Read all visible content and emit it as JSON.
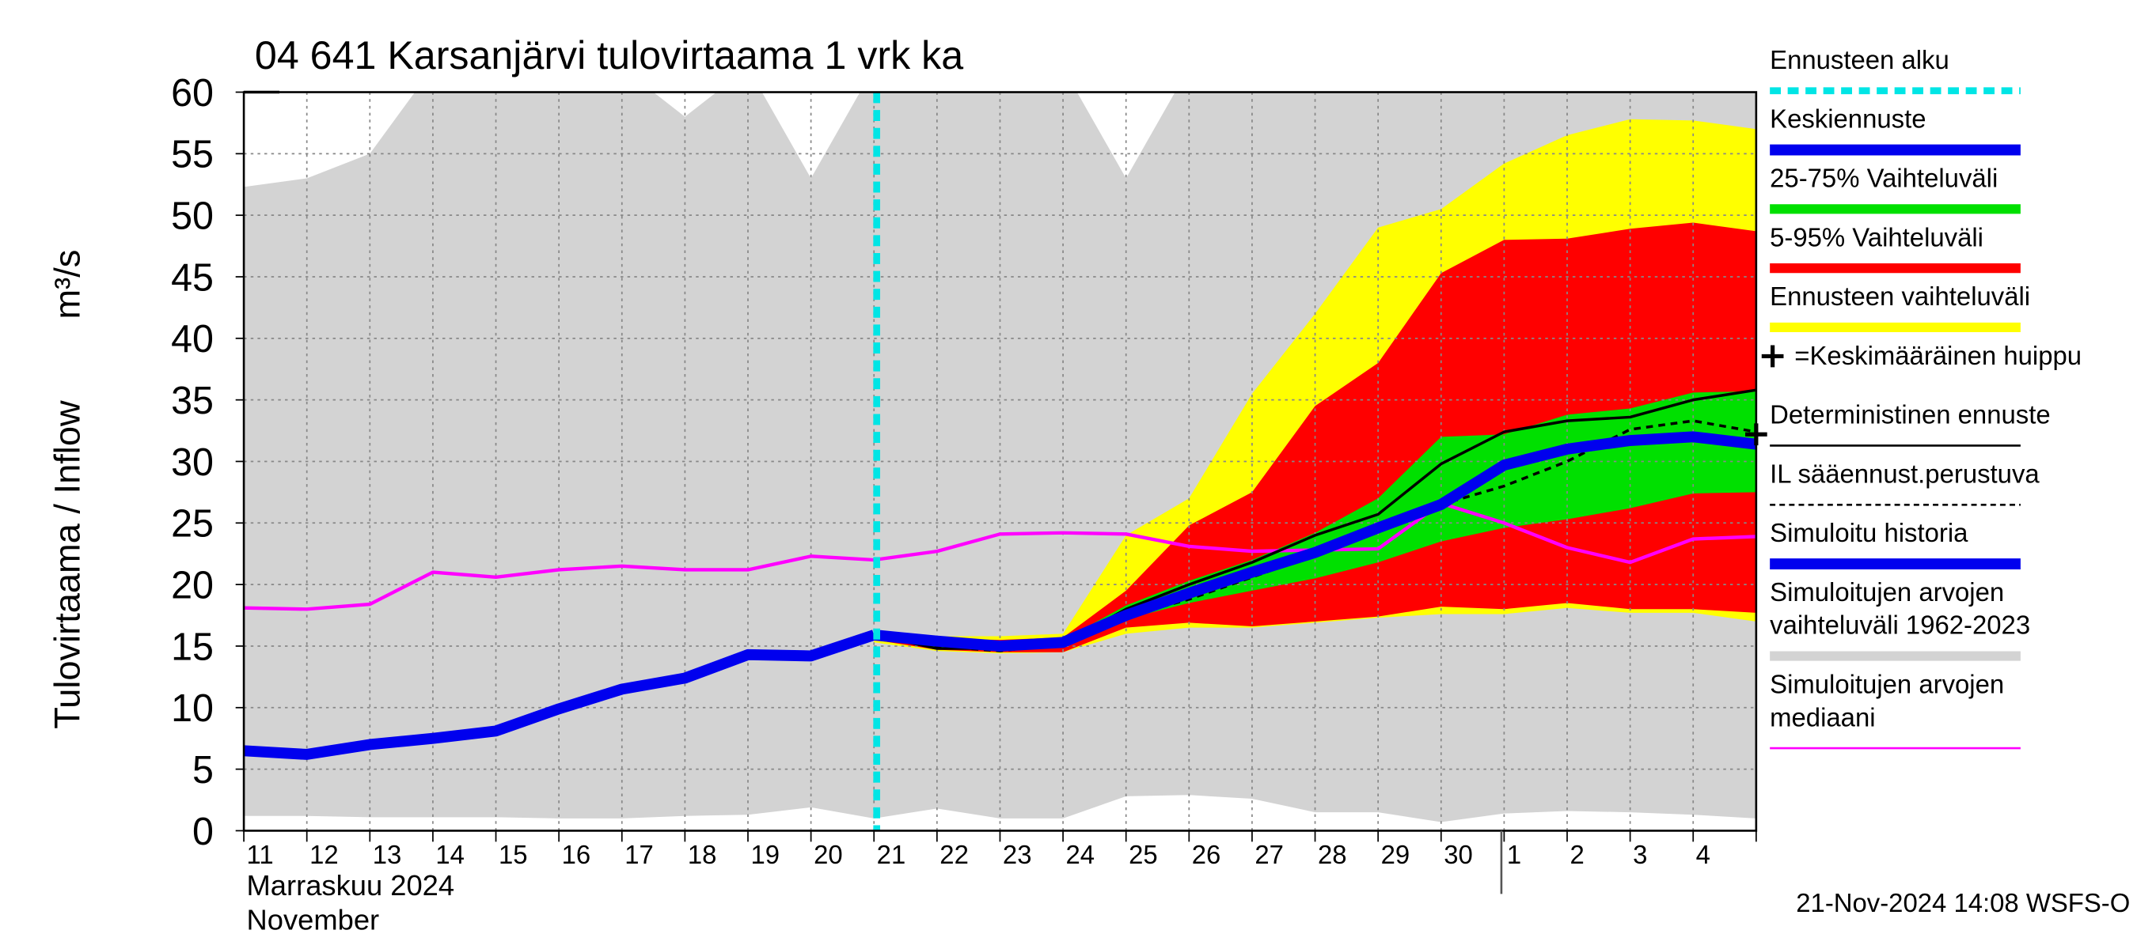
{
  "chart_data": {
    "type": "hydrograph",
    "title": "04 641 Karsanjärvi tulovirtaama 1 vrk ka",
    "y_label": "Tulovirtaama / Inflow",
    "y_unit": "m³/s",
    "month_label": "Marraskuu 2024",
    "month_label_en": "November",
    "footer": "21-Nov-2024 14:08 WSFS-O",
    "categories": [
      "11",
      "12",
      "13",
      "14",
      "15",
      "16",
      "17",
      "18",
      "19",
      "20",
      "21",
      "22",
      "23",
      "24",
      "25",
      "26",
      "27",
      "28",
      "29",
      "30",
      "1",
      "2",
      "3",
      "4",
      null
    ],
    "ylim": [
      0,
      60
    ],
    "yticks": [
      0,
      5,
      10,
      15,
      20,
      25,
      30,
      35,
      40,
      45,
      50,
      55,
      60
    ],
    "grid": true,
    "series": [
      {
        "name": "Ennusteen alku",
        "color": "#00e5e5",
        "kind": "vline",
        "at": 10
      },
      {
        "name": "Keskiennuste",
        "color": "#0000ee",
        "kind": "line",
        "width": 8,
        "values": [
          null,
          null,
          null,
          null,
          null,
          null,
          null,
          null,
          null,
          null,
          15.9,
          15.4,
          15.0,
          15.3,
          17.5,
          19.3,
          21.0,
          22.6,
          24.6,
          26.5,
          29.7,
          31.0,
          31.7,
          32.0,
          31.4
        ]
      },
      {
        "name": "25-75% Vaihteluväli",
        "color": "#00e000",
        "kind": "band",
        "low": [
          null,
          null,
          null,
          null,
          null,
          null,
          null,
          null,
          null,
          null,
          15.7,
          14.9,
          14.7,
          14.9,
          17.2,
          18.5,
          19.5,
          20.5,
          21.8,
          23.5,
          24.6,
          25.3,
          26.2,
          27.4,
          27.5
        ],
        "high": [
          null,
          null,
          null,
          null,
          null,
          null,
          null,
          null,
          null,
          null,
          16.0,
          15.5,
          15.3,
          15.5,
          18.3,
          20.3,
          22.0,
          24.2,
          27.0,
          32.0,
          32.2,
          33.8,
          34.3,
          35.6,
          35.7
        ]
      },
      {
        "name": "5-95% Vaihteluväli",
        "color": "#ff0000",
        "kind": "band",
        "low": [
          null,
          null,
          null,
          null,
          null,
          null,
          null,
          null,
          null,
          null,
          15.5,
          14.7,
          14.5,
          14.5,
          16.5,
          16.9,
          16.6,
          17.0,
          17.4,
          18.2,
          18.0,
          18.5,
          18.0,
          18.0,
          17.7
        ],
        "high": [
          null,
          null,
          null,
          null,
          null,
          null,
          null,
          null,
          null,
          null,
          16.1,
          15.6,
          15.5,
          15.7,
          19.5,
          24.8,
          27.5,
          34.5,
          38.0,
          45.3,
          48.0,
          48.1,
          48.9,
          49.4,
          48.7
        ]
      },
      {
        "name": "Ennusteen vaihteluväli",
        "color": "#ffff00",
        "kind": "band",
        "low": [
          null,
          null,
          null,
          null,
          null,
          null,
          null,
          null,
          null,
          null,
          15.3,
          14.6,
          14.4,
          14.5,
          16.0,
          16.5,
          16.5,
          16.9,
          17.3,
          17.6,
          17.6,
          18.1,
          17.7,
          17.7,
          17.0
        ],
        "high": [
          null,
          null,
          null,
          null,
          null,
          null,
          null,
          null,
          null,
          null,
          16.3,
          15.8,
          15.8,
          16.0,
          24.0,
          27.0,
          35.5,
          42.0,
          49.0,
          50.5,
          54.2,
          56.5,
          57.8,
          57.7,
          57.0
        ]
      },
      {
        "name": "=Keskimääräinen huippu",
        "color": "#000000",
        "kind": "peak",
        "values": [
          null,
          null,
          null,
          null,
          null,
          null,
          null,
          null,
          null,
          null,
          null,
          null,
          null,
          null,
          null,
          null,
          null,
          null,
          null,
          null,
          null,
          null,
          null,
          null,
          32.2
        ]
      },
      {
        "name": "Deterministinen ennuste",
        "color": "#000000",
        "kind": "line",
        "width": 2,
        "values": [
          null,
          null,
          null,
          null,
          null,
          null,
          null,
          null,
          null,
          null,
          15.9,
          14.8,
          14.8,
          15.2,
          18.0,
          20.0,
          21.8,
          24.0,
          25.7,
          29.8,
          32.4,
          33.3,
          33.6,
          35.0,
          35.8
        ]
      },
      {
        "name": "IL sääennust.perustuva",
        "color": "#000000",
        "kind": "line",
        "width": 2,
        "dashed": true,
        "values": [
          null,
          null,
          null,
          null,
          null,
          null,
          null,
          null,
          null,
          null,
          15.9,
          15.0,
          14.6,
          15.2,
          17.4,
          18.8,
          20.6,
          22.4,
          24.5,
          26.5,
          28.0,
          30.0,
          32.6,
          33.3,
          32.4
        ]
      },
      {
        "name": "Simuloitu historia",
        "color": "#0000ee",
        "kind": "line",
        "width": 8,
        "values": [
          6.5,
          6.2,
          7.0,
          7.5,
          8.1,
          9.9,
          11.5,
          12.4,
          14.3,
          14.2,
          15.9,
          null,
          null,
          null,
          null,
          null,
          null,
          null,
          null,
          null,
          null,
          null,
          null,
          null,
          null
        ]
      },
      {
        "name": "Simuloitujen arvojen vaihteluväli 1962-2023",
        "color": "#d3d3d3",
        "kind": "band",
        "low": [
          1.2,
          1.2,
          1.1,
          1.1,
          1.1,
          1.0,
          1.0,
          1.2,
          1.3,
          1.9,
          1.0,
          1.8,
          1.0,
          1.0,
          2.8,
          2.9,
          2.6,
          1.5,
          1.5,
          0.7,
          1.4,
          1.6,
          1.5,
          1.3,
          1.0
        ],
        "high": [
          52.3,
          53.0,
          55.0,
          62,
          62,
          62,
          62,
          58,
          62,
          53,
          62,
          62,
          62,
          62,
          53,
          62,
          62,
          62,
          62,
          62,
          62,
          62,
          62,
          62,
          62
        ]
      },
      {
        "name": "Simuloitujen arvojen mediaani",
        "color": "#ff00ff",
        "kind": "line",
        "width": 2.5,
        "values": [
          18.1,
          18.0,
          18.4,
          21.0,
          20.6,
          21.2,
          21.5,
          21.2,
          21.2,
          22.3,
          22.0,
          22.7,
          24.1,
          24.2,
          24.1,
          23.1,
          22.7,
          22.8,
          22.9,
          26.6,
          25.0,
          23.0,
          21.8,
          23.7,
          23.9
        ]
      }
    ]
  }
}
